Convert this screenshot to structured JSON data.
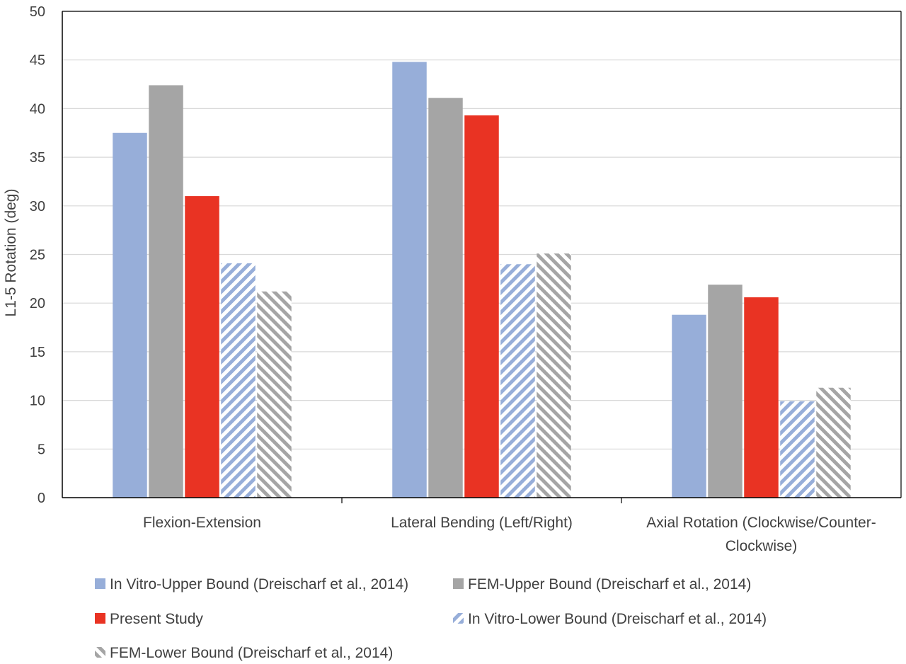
{
  "chart_data": {
    "type": "bar",
    "ylabel": "L1-5 Rotation (deg)",
    "ylim": [
      0,
      50
    ],
    "ytick_step": 5,
    "ytick_labels": [
      "0",
      "5",
      "10",
      "15",
      "20",
      "25",
      "30",
      "35",
      "40",
      "45",
      "50"
    ],
    "grid": true,
    "legend_position": "bottom",
    "categories": [
      [
        "Flexion-Extension"
      ],
      [
        "Lateral Bending (Left/Right)"
      ],
      [
        "Axial Rotation (Clockwise/Counter-",
        "Clockwise)"
      ]
    ],
    "series": [
      {
        "name": "In Vitro-Upper Bound (Dreischarf et al., 2014)",
        "color": "#97aed9",
        "pattern": "solid",
        "values": [
          37.5,
          44.8,
          18.8
        ]
      },
      {
        "name": "FEM-Upper Bound (Dreischarf et al., 2014)",
        "color": "#a5a5a5",
        "pattern": "solid",
        "values": [
          42.4,
          41.1,
          21.9
        ]
      },
      {
        "name": "Present Study",
        "color": "#e93323",
        "pattern": "solid",
        "values": [
          31.0,
          39.3,
          20.6
        ]
      },
      {
        "name": "In Vitro-Lower Bound (Dreischarf et al., 2014)",
        "color": "#97aed9",
        "pattern": "hatch",
        "values": [
          24.1,
          24.0,
          9.9
        ]
      },
      {
        "name": "FEM-Lower Bound (Dreischarf et al., 2014)",
        "color": "#a5a5a5",
        "pattern": "hatch",
        "values": [
          21.2,
          25.1,
          11.3
        ]
      }
    ]
  }
}
